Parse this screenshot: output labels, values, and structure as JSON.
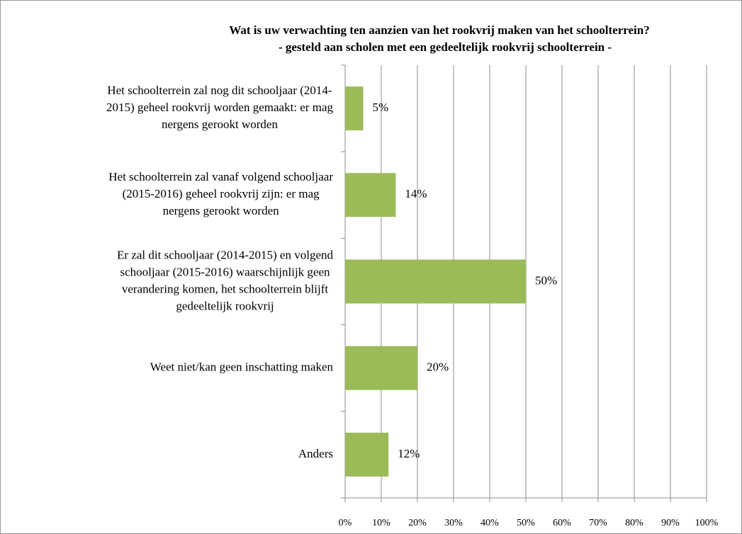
{
  "chart_data": {
    "type": "bar",
    "orientation": "horizontal",
    "title": "Wat is uw verwachting ten aanzien van het rookvrij maken van het schoolterrein?",
    "subtitle": "- gesteld aan scholen met een gedeeltelijk rookvrij schoolterrein -",
    "categories": [
      [
        "Het schoolterrein zal nog dit schooljaar (2014-",
        "2015) geheel rookvrij worden gemaakt: er mag",
        "nergens gerookt worden"
      ],
      [
        "Het schoolterrein zal vanaf volgend schooljaar",
        "(2015-2016) geheel rookvrij zijn: er mag",
        "nergens gerookt worden"
      ],
      [
        "Er zal dit schooljaar (2014-2015) en volgend",
        "schooljaar (2015-2016) waarschijnlijk geen",
        "verandering komen, het schoolterrein blijft",
        "gedeeltelijk rookvrij"
      ],
      [
        "Weet niet/kan geen inschatting maken"
      ],
      [
        "Anders"
      ]
    ],
    "values": [
      5,
      14,
      50,
      20,
      12
    ],
    "value_labels": [
      "5%",
      "14%",
      "50%",
      "20%",
      "12%"
    ],
    "color": "#9bbb59",
    "xlim": [
      0,
      100
    ],
    "xticks": [
      {
        "value": 0,
        "label": "0%"
      },
      {
        "value": 10,
        "label": "10%"
      },
      {
        "value": 20,
        "label": "20%"
      },
      {
        "value": 30,
        "label": "30%"
      },
      {
        "value": 40,
        "label": "40%"
      },
      {
        "value": 50,
        "label": "50%"
      },
      {
        "value": 60,
        "label": "60%"
      },
      {
        "value": 70,
        "label": "70%"
      },
      {
        "value": 80,
        "label": "80%"
      },
      {
        "value": 90,
        "label": "90%"
      },
      {
        "value": 100,
        "label": "100%"
      }
    ],
    "grid": true
  }
}
